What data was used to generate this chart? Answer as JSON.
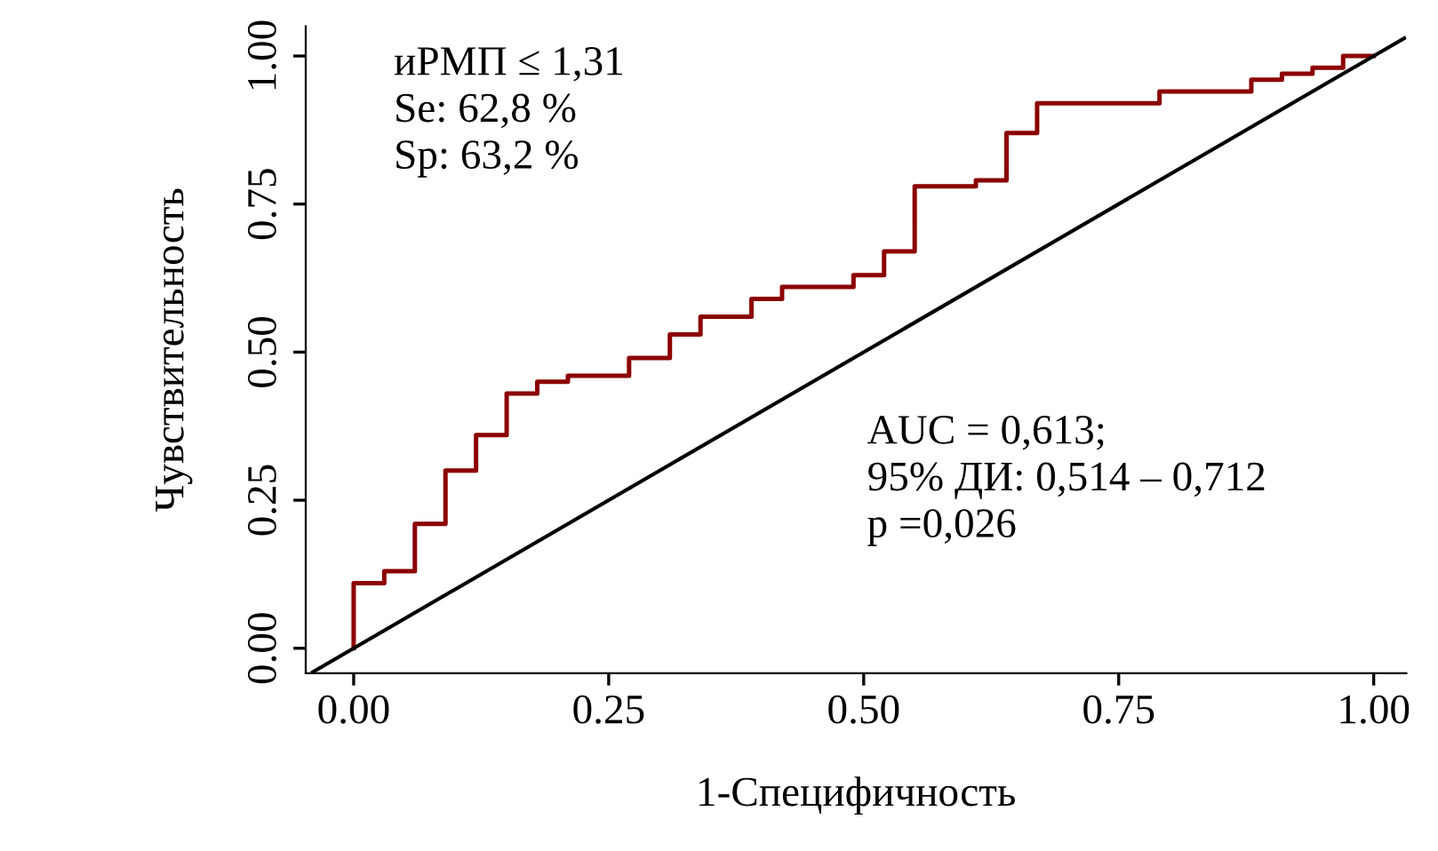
{
  "chart_data": {
    "type": "step",
    "xlabel": "1-Специфичность",
    "ylabel": "Чувствительность",
    "annotations": [
      "иРМП ≤ 1,31\nSe: 62,8 %\nSp: 63,2 %",
      "AUC = 0,613;\n95% ДИ: 0,514 – 0,712\np =0,026"
    ],
    "series": [
      {
        "color": "#8b0000",
        "x": [
          0,
          0,
          0.03,
          0.06,
          0.09,
          0.12,
          0.15,
          0.18,
          0.21,
          0.27,
          0.31,
          0.34,
          0.39,
          0.42,
          0.49,
          0.52,
          0.55,
          0.61,
          0.64,
          0.67,
          0.79,
          0.88,
          0.91,
          0.94,
          0.97,
          1.0
        ],
        "values": [
          0,
          0.11,
          0.13,
          0.21,
          0.3,
          0.36,
          0.43,
          0.45,
          0.46,
          0.49,
          0.53,
          0.56,
          0.59,
          0.61,
          0.63,
          0.67,
          0.78,
          0.79,
          0.87,
          0.92,
          0.94,
          0.96,
          0.97,
          0.98,
          1.0,
          1.0
        ]
      },
      {
        "type": "line",
        "color": "#000000",
        "x": [
          -0.04,
          1.03
        ],
        "values": [
          -0.04,
          1.03
        ]
      }
    ],
    "xlim": [
      -0.047,
      1.032
    ],
    "ylim": [
      -0.042,
      1.05
    ],
    "xticks": [
      {
        "value": 0,
        "label": "0.00"
      },
      {
        "value": 0.25,
        "label": "0.25"
      },
      {
        "value": 0.5,
        "label": "0.50"
      },
      {
        "value": 0.75,
        "label": "0.75"
      },
      {
        "value": 1,
        "label": "1.00"
      }
    ],
    "yticks": [
      {
        "value": 0,
        "label": "0.00"
      },
      {
        "value": 0.25,
        "label": "0.25"
      },
      {
        "value": 0.5,
        "label": "0.50"
      },
      {
        "value": 0.75,
        "label": "0.75"
      },
      {
        "value": 1,
        "label": "1.00"
      }
    ],
    "grid": false,
    "legend": false
  }
}
